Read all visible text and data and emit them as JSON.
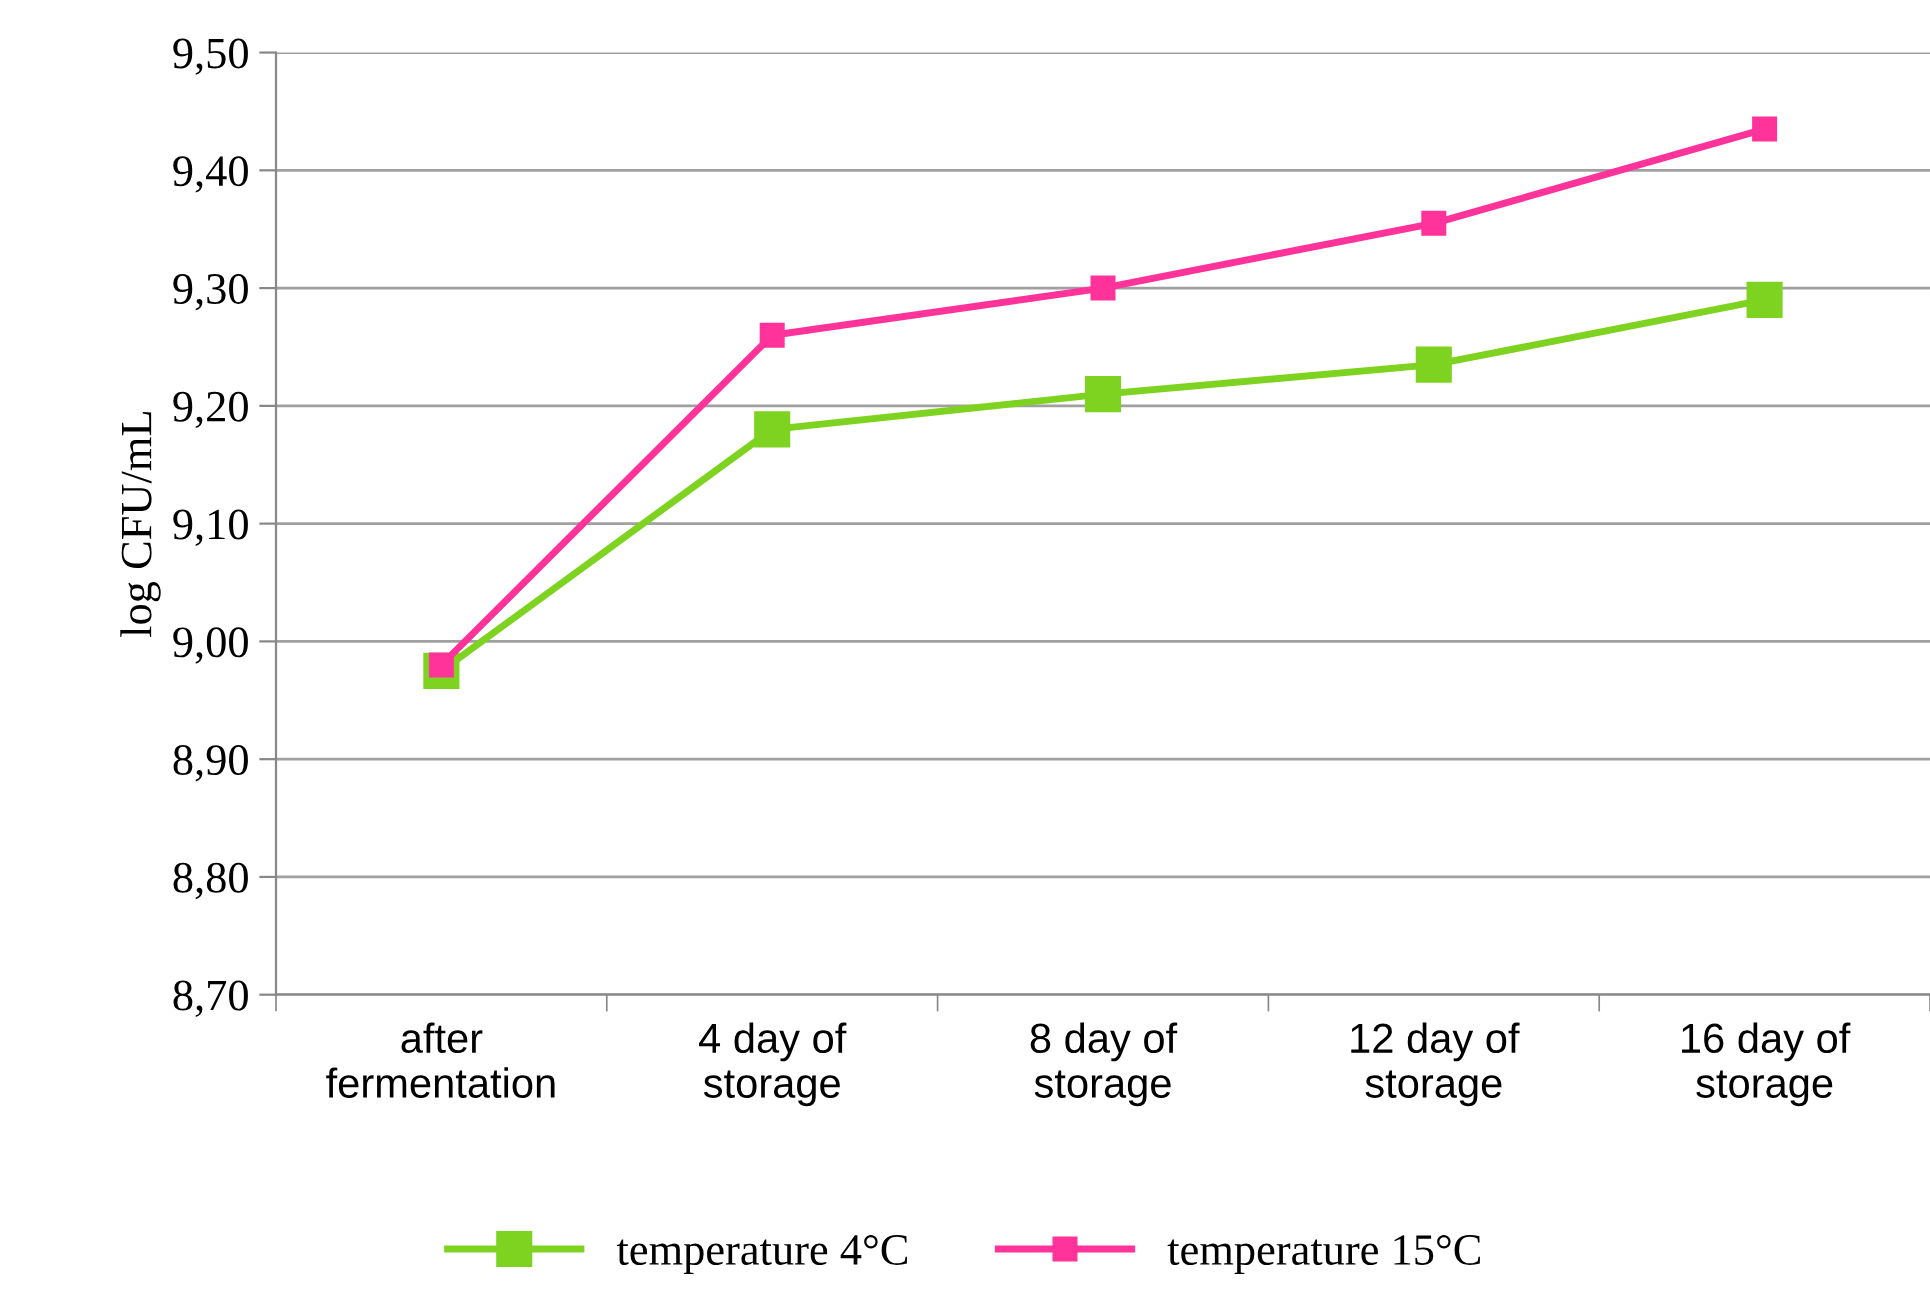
{
  "chart_data": {
    "type": "line",
    "ylabel": "log CFU/mL",
    "categories": [
      "after\nfermentation",
      "4 day of\nstorage",
      "8 day of\nstorage",
      "12 day of\nstorage",
      "16 day of\nstorage"
    ],
    "series": [
      {
        "name": "temperature 4°C",
        "color": "#7ed321",
        "values": [
          8.975,
          9.18,
          9.21,
          9.235,
          9.29
        ]
      },
      {
        "name": "temperature 15°C",
        "color": "#ff3399",
        "values": [
          8.98,
          9.26,
          9.3,
          9.355,
          9.435
        ]
      }
    ],
    "ylim": [
      8.7,
      9.5
    ],
    "yticks": [
      {
        "value": 8.7,
        "label": "8,70"
      },
      {
        "value": 8.8,
        "label": "8,80"
      },
      {
        "value": 8.9,
        "label": "8,90"
      },
      {
        "value": 9.0,
        "label": "9,00"
      },
      {
        "value": 9.1,
        "label": "9,10"
      },
      {
        "value": 9.2,
        "label": "9,20"
      },
      {
        "value": 9.3,
        "label": "9,30"
      },
      {
        "value": 9.4,
        "label": "9,40"
      },
      {
        "value": 9.5,
        "label": "9,50"
      }
    ],
    "grid": "y",
    "legend": "bottom",
    "marker": "square",
    "line_style": "solid"
  }
}
